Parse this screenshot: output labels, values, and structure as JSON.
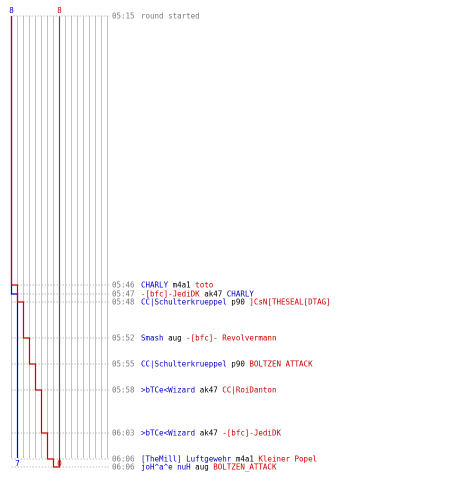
{
  "colors": {
    "blue": "#0000cc",
    "red": "#cc0000",
    "grid": "#b4b4b4",
    "center": "#555555",
    "dot": "#aaaaaa",
    "time": "#7a7a7a"
  },
  "scores": {
    "blue_start": "8",
    "red_start": "8",
    "blue_end": "7",
    "red_end": "0"
  },
  "start_event": {
    "time": "05:15",
    "text": "round started"
  },
  "events": [
    {
      "time": "05:46",
      "killer": "CHARLY",
      "killer_team": "blue",
      "weapon": "m4a1",
      "victim": "toto",
      "victim_team": "red",
      "blue_after": 8,
      "red_after": 7
    },
    {
      "time": "05:47",
      "killer": "-[bfc]-JediDK",
      "killer_team": "red",
      "weapon": "ak47",
      "victim": "CHARLY",
      "victim_team": "blue",
      "blue_after": 7,
      "red_after": 7
    },
    {
      "time": "05:48",
      "killer": "CC|Schulterkrueppel",
      "killer_team": "blue",
      "weapon": "p90",
      "victim": "]CsN[THESEAL[DTAG]",
      "victim_team": "red",
      "blue_after": 7,
      "red_after": 6
    },
    {
      "time": "05:52",
      "killer": "Smash",
      "killer_team": "blue",
      "weapon": "aug",
      "victim": "-[bfc]- Revolvermann",
      "victim_team": "red",
      "blue_after": 7,
      "red_after": 5
    },
    {
      "time": "05:55",
      "killer": "CC|Schulterkrueppel",
      "killer_team": "blue",
      "weapon": "p90",
      "victim": "BOLTZEN ATTACK",
      "victim_team": "red",
      "blue_after": 7,
      "red_after": 4
    },
    {
      "time": "05:58",
      "killer": ">bTCe<Wizard",
      "killer_team": "blue",
      "weapon": "ak47",
      "victim": "CC|RoiDanton",
      "victim_team": "red",
      "blue_after": 7,
      "red_after": 3
    },
    {
      "time": "06:03",
      "killer": ">bTCe<Wizard",
      "killer_team": "blue",
      "weapon": "ak47",
      "victim": "-[bfc]-JediDK",
      "victim_team": "red",
      "blue_after": 7,
      "red_after": 2
    },
    {
      "time": "06:06",
      "killer": "[TheMill] Luftgewehr",
      "killer_team": "blue",
      "weapon": "m4a1",
      "victim": "Kleiner Popel",
      "victim_team": "red",
      "blue_after": 7,
      "red_after": 1
    },
    {
      "time": "06:06",
      "killer": "joH^a^e nuH",
      "killer_team": "blue",
      "weapon": "aug",
      "victim": "BOLTZEN_ATTACK",
      "victim_team": "red",
      "blue_after": 7,
      "red_after": 0
    }
  ]
}
